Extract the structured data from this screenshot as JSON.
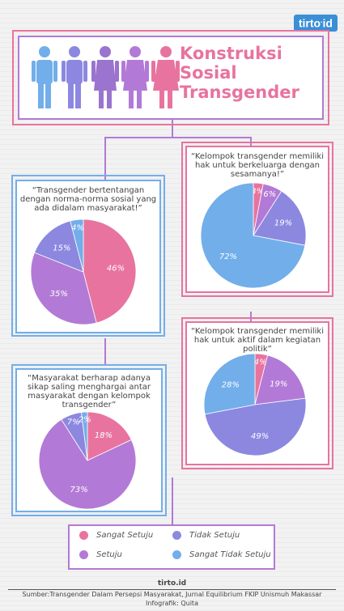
{
  "brand": {
    "logo_text": "tirto",
    "logo_suffix": "id"
  },
  "title": {
    "line1": "Konstruksi",
    "line2": "Sosial",
    "line3": "Transgender"
  },
  "colors": {
    "sangat_setuju": "#e8739f",
    "setuju": "#b27ad6",
    "tidak_setuju": "#8c88e0",
    "sangat_tidak_setuju": "#72aeea",
    "frame": "#b27ad6",
    "pink": "#e8739f",
    "blue": "#72aeea"
  },
  "icons": [
    "person-icon-blue",
    "person-icon-lilac",
    "person-icon-purple",
    "person-icon-violet",
    "person-icon-pink"
  ],
  "chart_data": [
    {
      "type": "pie",
      "title": "“Transgender bertentangan dengan norma-norma sosial yang ada didalam masyarakat!”",
      "slices": [
        {
          "label": "Sangat Setuju",
          "value": 46
        },
        {
          "label": "Setuju",
          "value": 35
        },
        {
          "label": "Tidak Setuju",
          "value": 15
        },
        {
          "label": "Sangat Tidak Setuju",
          "value": 4
        }
      ],
      "value_labels": [
        "46%",
        "35%",
        "15%",
        "4%"
      ]
    },
    {
      "type": "pie",
      "title": "“Kelompok transgender memiliki hak untuk berkeluarga dengan sesamanya!”",
      "slices": [
        {
          "label": "Sangat Setuju",
          "value": 3
        },
        {
          "label": "Setuju",
          "value": 6
        },
        {
          "label": "Tidak Setuju",
          "value": 19
        },
        {
          "label": "Sangat Tidak Setuju",
          "value": 72
        }
      ],
      "value_labels": [
        "3%",
        "6%",
        "19%",
        "72%"
      ]
    },
    {
      "type": "pie",
      "title": "“Kelompok transgender memiliki hak untuk aktif dalam kegiatan politik”",
      "slices": [
        {
          "label": "Sangat Setuju",
          "value": 4
        },
        {
          "label": "Setuju",
          "value": 19
        },
        {
          "label": "Tidak Setuju",
          "value": 49
        },
        {
          "label": "Sangat Tidak Setuju",
          "value": 28
        }
      ],
      "value_labels": [
        "4%",
        "19%",
        "49%",
        "28%"
      ]
    },
    {
      "type": "pie",
      "title": "“Masyarakat berharap adanya sikap saling menghargai antar masyarakat dengan kelompok transgender”",
      "slices": [
        {
          "label": "Sangat Setuju",
          "value": 18
        },
        {
          "label": "Setuju",
          "value": 73
        },
        {
          "label": "Tidak Setuju",
          "value": 7
        },
        {
          "label": "Sangat Tidak Setuju",
          "value": 2
        }
      ],
      "value_labels": [
        "18%",
        "73%",
        "7%",
        "2%"
      ]
    }
  ],
  "legend": {
    "sangat_setuju": "Sangat Setuju",
    "setuju": "Setuju",
    "tidak_setuju": "Tidak Setuju",
    "sangat_tidak_setuju": "Sangat Tidak Setuju"
  },
  "footer": {
    "brand": "tirto.id",
    "source": "Sumber:Transgender Dalam Persepsi Masyarakat, Jurnal Equilibrium FKIP Unismuh Makassar",
    "credit": "Infografik: Quita"
  }
}
